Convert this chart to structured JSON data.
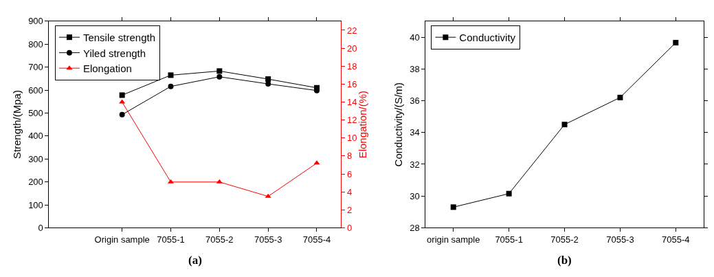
{
  "chart_data": [
    {
      "type": "line",
      "categories": [
        null,
        "Origin sample",
        "7055-1",
        "7055-2",
        "7055-3",
        "7055-4"
      ],
      "ylabel": "Strength/(Mpa)",
      "y2label": "Elongation/(%)",
      "ylim": [
        0,
        900
      ],
      "yticks": [
        0,
        100,
        200,
        300,
        400,
        500,
        600,
        700,
        800,
        900
      ],
      "y2lim": [
        0,
        23
      ],
      "y2ticks": [
        0,
        2,
        4,
        6,
        8,
        10,
        12,
        14,
        16,
        18,
        20,
        22
      ],
      "legend": "top left",
      "annotations": [
        "(a)"
      ],
      "series": [
        {
          "name": "Tensile strength",
          "color": "#000000",
          "marker": "square",
          "values": [
            null,
            578,
            665,
            683,
            648,
            610
          ]
        },
        {
          "name": "Yiled strength",
          "color": "#000000",
          "marker": "circle",
          "values": [
            null,
            493,
            616,
            658,
            627,
            598
          ]
        },
        {
          "name": "Elongation",
          "color": "#ff0000",
          "marker": "triangle",
          "axis": "y2",
          "values": [
            null,
            14,
            5.1,
            5.1,
            3.5,
            7.2
          ]
        }
      ]
    },
    {
      "type": "line",
      "categories": [
        "origin sample",
        "7055-1",
        "7055-2",
        "7055-3",
        "7055-4"
      ],
      "ylabel": "Conductivity/(S/m)",
      "ylim": [
        28,
        41
      ],
      "yticks": [
        28,
        30,
        32,
        34,
        36,
        38,
        40
      ],
      "legend": "top left",
      "annotations": [
        "(b)"
      ],
      "series": [
        {
          "name": "Conductivity",
          "color": "#000000",
          "marker": "square",
          "values": [
            29.3,
            30.15,
            34.5,
            36.2,
            39.65
          ]
        }
      ]
    }
  ]
}
